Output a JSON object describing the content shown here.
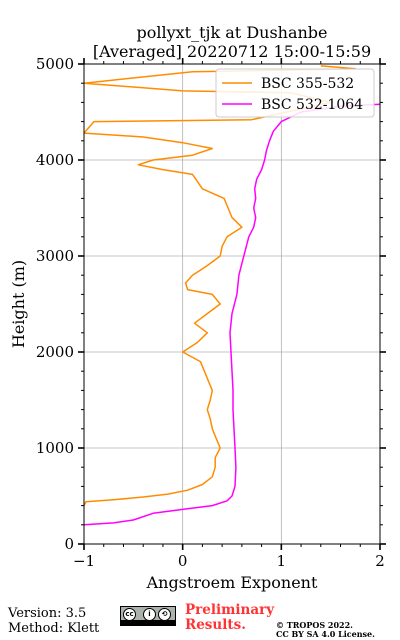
{
  "chart_data": {
    "type": "line",
    "title": "pollyxt_tjk at Dushanbe",
    "subtitle": "[Averaged] 20220712 15:00-15:59",
    "xlabel": "Angstroem Exponent",
    "ylabel": "Height (m)",
    "xlim": [
      -1,
      2
    ],
    "ylim": [
      0,
      5000
    ],
    "xticks": [
      -1,
      0,
      1,
      2
    ],
    "yticks": [
      0,
      1000,
      2000,
      3000,
      4000,
      5000
    ],
    "grid": true,
    "legend_position": "top-right",
    "series": [
      {
        "name": "BSC 355-532",
        "color": "#ff8c00",
        "points": [
          [
            -1.0,
            400
          ],
          [
            -0.98,
            440
          ],
          [
            -0.7,
            460
          ],
          [
            -0.4,
            490
          ],
          [
            -0.15,
            520
          ],
          [
            0.05,
            560
          ],
          [
            0.2,
            620
          ],
          [
            0.3,
            700
          ],
          [
            0.33,
            800
          ],
          [
            0.33,
            900
          ],
          [
            0.38,
            1000
          ],
          [
            0.34,
            1100
          ],
          [
            0.3,
            1200
          ],
          [
            0.28,
            1300
          ],
          [
            0.25,
            1400
          ],
          [
            0.28,
            1500
          ],
          [
            0.3,
            1600
          ],
          [
            0.26,
            1700
          ],
          [
            0.22,
            1800
          ],
          [
            0.18,
            1900
          ],
          [
            0.0,
            2000
          ],
          [
            0.15,
            2100
          ],
          [
            0.25,
            2200
          ],
          [
            0.12,
            2300
          ],
          [
            0.25,
            2400
          ],
          [
            0.38,
            2500
          ],
          [
            0.3,
            2600
          ],
          [
            0.05,
            2650
          ],
          [
            0.03,
            2720
          ],
          [
            0.1,
            2800
          ],
          [
            0.25,
            2900
          ],
          [
            0.38,
            3000
          ],
          [
            0.4,
            3100
          ],
          [
            0.45,
            3200
          ],
          [
            0.6,
            3300
          ],
          [
            0.5,
            3400
          ],
          [
            0.46,
            3500
          ],
          [
            0.42,
            3600
          ],
          [
            0.2,
            3700
          ],
          [
            0.1,
            3850
          ],
          [
            -0.2,
            3900
          ],
          [
            -0.45,
            3950
          ],
          [
            -0.3,
            4000
          ],
          [
            0.1,
            4050
          ],
          [
            0.3,
            4120
          ],
          [
            0.0,
            4180
          ],
          [
            -0.4,
            4240
          ],
          [
            -1.0,
            4280
          ],
          [
            -0.9,
            4400
          ],
          [
            0.7,
            4420
          ],
          [
            1.5,
            4600
          ],
          [
            1.1,
            4700
          ],
          [
            0.0,
            4720
          ],
          [
            -1.0,
            4800
          ],
          [
            0.1,
            4920
          ],
          [
            1.3,
            4940
          ],
          [
            1.75,
            4950
          ],
          [
            1.4,
            4980
          ]
        ]
      },
      {
        "name": "BSC 532-1064",
        "color": "#ff00ff",
        "points": [
          [
            -1.0,
            200
          ],
          [
            -0.7,
            220
          ],
          [
            -0.5,
            250
          ],
          [
            -0.3,
            320
          ],
          [
            0.0,
            360
          ],
          [
            0.3,
            400
          ],
          [
            0.45,
            450
          ],
          [
            0.5,
            500
          ],
          [
            0.53,
            600
          ],
          [
            0.54,
            800
          ],
          [
            0.53,
            1000
          ],
          [
            0.52,
            1200
          ],
          [
            0.51,
            1400
          ],
          [
            0.51,
            1600
          ],
          [
            0.5,
            1800
          ],
          [
            0.49,
            2000
          ],
          [
            0.48,
            2200
          ],
          [
            0.5,
            2400
          ],
          [
            0.55,
            2600
          ],
          [
            0.57,
            2800
          ],
          [
            0.62,
            3000
          ],
          [
            0.67,
            3200
          ],
          [
            0.72,
            3300
          ],
          [
            0.74,
            3400
          ],
          [
            0.72,
            3500
          ],
          [
            0.74,
            3600
          ],
          [
            0.73,
            3700
          ],
          [
            0.75,
            3800
          ],
          [
            0.8,
            3900
          ],
          [
            0.83,
            4000
          ],
          [
            0.85,
            4100
          ],
          [
            0.88,
            4200
          ],
          [
            0.92,
            4300
          ],
          [
            1.0,
            4400
          ],
          [
            1.2,
            4500
          ],
          [
            1.6,
            4560
          ],
          [
            2.0,
            4580
          ]
        ]
      }
    ]
  },
  "footer": {
    "version": "Version: 3.5",
    "method": "Method: Klett",
    "preliminary_line1": "Preliminary",
    "preliminary_line2": "Results.",
    "copyright_line1": "© TROPOS 2022.",
    "copyright_line2": "CC BY SA 4.0 License.",
    "license_badge": "cc by sa"
  }
}
